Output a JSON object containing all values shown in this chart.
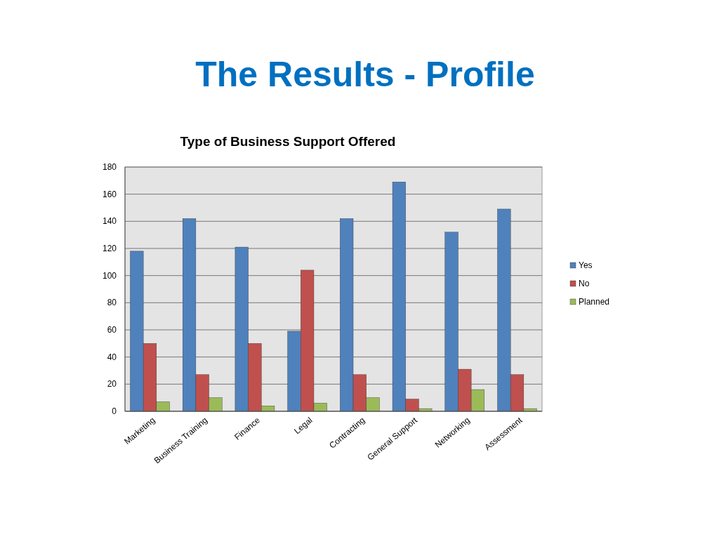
{
  "chart_data": {
    "type": "bar",
    "title": "The Results - Profile",
    "subtitle": "Type of Business Support Offered",
    "categories": [
      "Marketing",
      "Business Training",
      "Finance",
      "Legal",
      "Contracting",
      "General Support",
      "Networking",
      "Assessment"
    ],
    "series": [
      {
        "name": "Yes",
        "color": "#4f81bd",
        "values": [
          118,
          142,
          121,
          59,
          142,
          169,
          132,
          149
        ]
      },
      {
        "name": "No",
        "color": "#c0504d",
        "values": [
          50,
          27,
          50,
          104,
          27,
          9,
          31,
          27
        ]
      },
      {
        "name": "Planned",
        "color": "#9bbb59",
        "values": [
          7,
          10,
          4,
          6,
          10,
          2,
          16,
          2
        ]
      }
    ],
    "ylim": [
      0,
      180
    ],
    "yticks": [
      0,
      20,
      40,
      60,
      80,
      100,
      120,
      140,
      160,
      180
    ],
    "grid": "y",
    "legend": "right"
  }
}
